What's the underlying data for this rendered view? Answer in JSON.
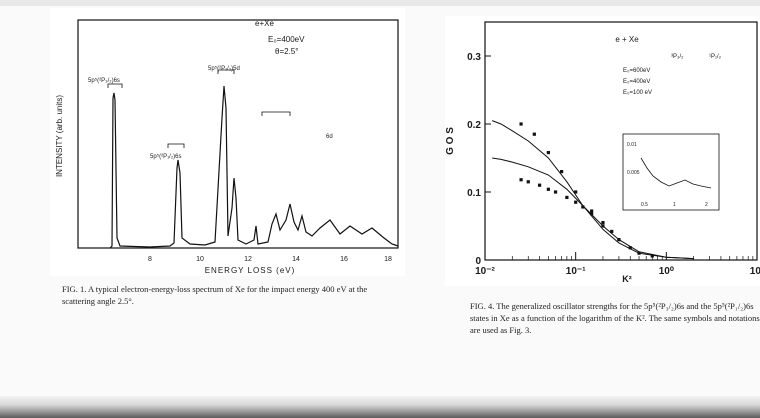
{
  "figure1": {
    "reaction": "e+Xe",
    "conditions": [
      "E₀=400eV",
      "θ=2.5°"
    ],
    "ylabel": "INTENSITY (arb. units)",
    "xlabel": "ENERGY LOSS (eV)",
    "x_ticks": [
      "8",
      "10",
      "12",
      "14",
      "16",
      "18"
    ],
    "peak_labels": [
      "5p⁵(²P₃/₂)6s",
      "5p⁵(²P₁/₂)6s",
      "5p⁵(²P₁/₂)5d",
      "6d"
    ],
    "caption": "FIG. 1. A typical electron-energy-loss spectrum of Xe for the impact energy 400 eV at the scattering angle 2.5°."
  },
  "figure4": {
    "chart_data": {
      "type": "scatter",
      "title": "e + Xe",
      "xlabel": "K²",
      "ylabel": "G O S",
      "xscale": "log",
      "xlim": [
        0.01,
        10
      ],
      "ylim": [
        0,
        0.35
      ],
      "x_tick_labels": [
        "10⁻²",
        "10⁻¹",
        "10⁰",
        "10¹"
      ],
      "y_tick_labels": [
        "0",
        "0.1",
        "0.2",
        "0.3"
      ],
      "legend_header": [
        "³P₃/₂",
        "¹P₁/₂"
      ],
      "legend": [
        "E₀=600eV",
        "E₀=400eV",
        "E₀=100 eV"
      ],
      "legend_position": "top-right",
      "inset": {
        "y_tick_labels": [
          "0.01",
          "0.005"
        ],
        "x_tick_labels": [
          "0.5",
          "1",
          "2"
        ]
      },
      "series": [
        {
          "values": [
            [
              0.012,
              0.205
            ],
            [
              0.015,
              0.2
            ],
            [
              0.02,
              0.19
            ],
            [
              0.03,
              0.175
            ],
            [
              0.05,
              0.15
            ],
            [
              0.08,
              0.115
            ],
            [
              0.12,
              0.08
            ],
            [
              0.2,
              0.045
            ],
            [
              0.3,
              0.025
            ],
            [
              0.5,
              0.01
            ],
            [
              1,
              0.004
            ],
            [
              2,
              0.002
            ]
          ]
        },
        {
          "values": [
            [
              0.012,
              0.15
            ],
            [
              0.015,
              0.148
            ],
            [
              0.02,
              0.144
            ],
            [
              0.03,
              0.137
            ],
            [
              0.05,
              0.125
            ],
            [
              0.08,
              0.104
            ],
            [
              0.12,
              0.08
            ],
            [
              0.2,
              0.05
            ],
            [
              0.3,
              0.03
            ],
            [
              0.5,
              0.012
            ],
            [
              1,
              0.004
            ],
            [
              2,
              0.002
            ]
          ]
        },
        {
          "values": [
            [
              0.025,
              0.118
            ],
            [
              0.03,
              0.115
            ],
            [
              0.04,
              0.11
            ],
            [
              0.05,
              0.104
            ],
            [
              0.06,
              0.1
            ],
            [
              0.08,
              0.092
            ],
            [
              0.1,
              0.085
            ],
            [
              0.12,
              0.078
            ],
            [
              0.15,
              0.068
            ],
            [
              0.2,
              0.055
            ],
            [
              0.25,
              0.042
            ],
            [
              0.3,
              0.03
            ],
            [
              0.4,
              0.018
            ],
            [
              0.5,
              0.01
            ],
            [
              0.7,
              0.006
            ]
          ]
        },
        {
          "values": [
            [
              0.025,
              0.2
            ],
            [
              0.035,
              0.185
            ],
            [
              0.05,
              0.158
            ],
            [
              0.07,
              0.13
            ],
            [
              0.1,
              0.1
            ],
            [
              0.15,
              0.072
            ],
            [
              0.2,
              0.05
            ],
            [
              0.3,
              0.03
            ]
          ]
        }
      ]
    },
    "caption": "FIG. 4. The generalized oscillator strengths for the 5p⁵(²P₃/₂)6s and the 5p⁵(²P₁/₂)6s states in Xe as a function of the logarithm of the K². The same symbols and notations are used as Fig. 3."
  }
}
